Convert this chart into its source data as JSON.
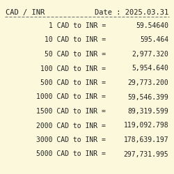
{
  "title_left": "CAD / INR",
  "title_right": "Date : 2025.03.31",
  "background_color": "#fbf8dc",
  "rows": [
    {
      "cad": "1",
      "inr": "59.54640"
    },
    {
      "cad": "10",
      "inr": "595.464"
    },
    {
      "cad": "50",
      "inr": "2,977.320"
    },
    {
      "cad": "100",
      "inr": "5,954.640"
    },
    {
      "cad": "500",
      "inr": "29,773.200"
    },
    {
      "cad": "1000",
      "inr": "59,546.399"
    },
    {
      "cad": "1500",
      "inr": "89,319.599"
    },
    {
      "cad": "2000",
      "inr": "119,092.798"
    },
    {
      "cad": "3000",
      "inr": "178,639.197"
    },
    {
      "cad": "5000",
      "inr": "297,731.995"
    }
  ],
  "font_color": "#222222",
  "separator_color": "#666666",
  "font_size": 7.0,
  "title_font_size": 7.5
}
